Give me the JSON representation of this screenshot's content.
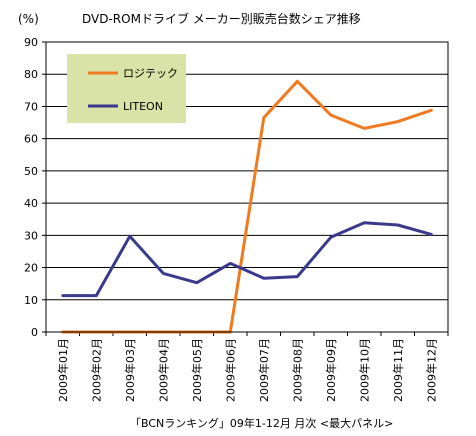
{
  "chart_data": {
    "type": "line",
    "title": "DVD-ROMドライブ メーカー別販売台数シェア推移",
    "unit_label": "(%)",
    "source_note": "「BCNランキング」09年1-12月 月次 <最大パネル>",
    "categories": [
      "2009年01月",
      "2009年02月",
      "2009年03月",
      "2009年04月",
      "2009年05月",
      "2009年06月",
      "2009年07月",
      "2009年08月",
      "2009年09月",
      "2009年10月",
      "2009年11月",
      "2009年12月"
    ],
    "ylim": [
      0,
      90
    ],
    "yticks": [
      0,
      10,
      20,
      30,
      40,
      50,
      60,
      70,
      80,
      90
    ],
    "grid": true,
    "legend_position": "top-left",
    "legend_bg": "#d9e3a8",
    "series": [
      {
        "name": "ロジテック",
        "color": "#f07a20",
        "values": [
          0,
          0,
          0,
          0,
          0,
          0,
          66.5,
          77.8,
          67.3,
          63.2,
          65.3,
          68.8
        ]
      },
      {
        "name": "LITEON",
        "color": "#3a3a8c",
        "values": [
          11.3,
          11.3,
          29.7,
          18.2,
          15.3,
          21.3,
          16.7,
          17.2,
          29.4,
          33.9,
          33.2,
          30.3
        ]
      }
    ]
  }
}
